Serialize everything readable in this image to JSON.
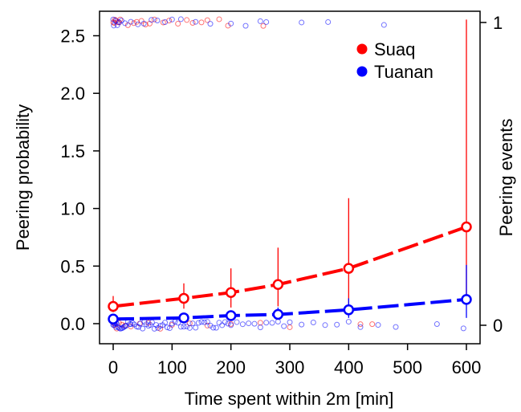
{
  "chart_data": {
    "type": "scatter",
    "xlabel": "Time spent within 2m [min]",
    "ylabel_left": "Peering probability",
    "ylabel_right": "Peering events",
    "x_ticks": [
      0,
      100,
      200,
      300,
      400,
      500,
      600
    ],
    "y_left_ticks": [
      "0.0",
      "0.5",
      "1.0",
      "1.5",
      "2.0",
      "2.5"
    ],
    "y_right_ticks": [
      "0",
      "1"
    ],
    "xlim": [
      0,
      600
    ],
    "ylim_left": [
      0,
      2.6
    ],
    "legend_position": "top-right",
    "grid": false,
    "legend": [
      {
        "label": "Suaq",
        "color": "#ff0000"
      },
      {
        "label": "Tuanan",
        "color": "#0000ff"
      }
    ],
    "series": [
      {
        "name": "Suaq",
        "color": "#ff0000",
        "points": [
          {
            "x": 0,
            "y": 0.15,
            "lo": 0.1,
            "hi": 0.24
          },
          {
            "x": 120,
            "y": 0.22,
            "lo": 0.13,
            "hi": 0.35
          },
          {
            "x": 200,
            "y": 0.27,
            "lo": 0.14,
            "hi": 0.48
          },
          {
            "x": 280,
            "y": 0.34,
            "lo": 0.15,
            "hi": 0.66
          },
          {
            "x": 400,
            "y": 0.48,
            "lo": 0.16,
            "hi": 1.09
          },
          {
            "x": 600,
            "y": 0.84,
            "lo": 0.17,
            "hi": 2.64
          }
        ],
        "raw_events_1": [
          0,
          2,
          3,
          5,
          8,
          10,
          12,
          25,
          35,
          40,
          48,
          55,
          62,
          70,
          85,
          95,
          110,
          125,
          135,
          150,
          160,
          180,
          195,
          255
        ],
        "raw_events_0": [
          0,
          3,
          6,
          10,
          15,
          20,
          30,
          45,
          60,
          80,
          100,
          130,
          160,
          200,
          250,
          300,
          420,
          440
        ]
      },
      {
        "name": "Tuanan",
        "color": "#0000ff",
        "points": [
          {
            "x": 0,
            "y": 0.04,
            "lo": 0.03,
            "hi": 0.06
          },
          {
            "x": 120,
            "y": 0.05,
            "lo": 0.04,
            "hi": 0.08
          },
          {
            "x": 200,
            "y": 0.07,
            "lo": 0.05,
            "hi": 0.11
          },
          {
            "x": 280,
            "y": 0.08,
            "lo": 0.05,
            "hi": 0.14
          },
          {
            "x": 400,
            "y": 0.12,
            "lo": 0.05,
            "hi": 0.22
          },
          {
            "x": 600,
            "y": 0.21,
            "lo": 0.05,
            "hi": 0.51
          }
        ],
        "raw_events_1": [
          0,
          1,
          4,
          7,
          10,
          14,
          20,
          30,
          42,
          52,
          65,
          75,
          88,
          100,
          115,
          140,
          165,
          200,
          225,
          250,
          260,
          320,
          365,
          460
        ],
        "raw_events_0": [
          0,
          1,
          2,
          3,
          4,
          5,
          6,
          8,
          10,
          12,
          14,
          16,
          18,
          20,
          22,
          25,
          28,
          30,
          33,
          36,
          40,
          43,
          46,
          50,
          53,
          56,
          60,
          63,
          66,
          70,
          73,
          76,
          80,
          84,
          88,
          92,
          96,
          100,
          105,
          110,
          115,
          120,
          125,
          130,
          135,
          140,
          145,
          150,
          155,
          160,
          165,
          170,
          175,
          180,
          185,
          190,
          195,
          200,
          210,
          220,
          230,
          240,
          250,
          260,
          270,
          280,
          290,
          300,
          320,
          340,
          360,
          380,
          400,
          420,
          450,
          480,
          550,
          595
        ]
      }
    ]
  }
}
